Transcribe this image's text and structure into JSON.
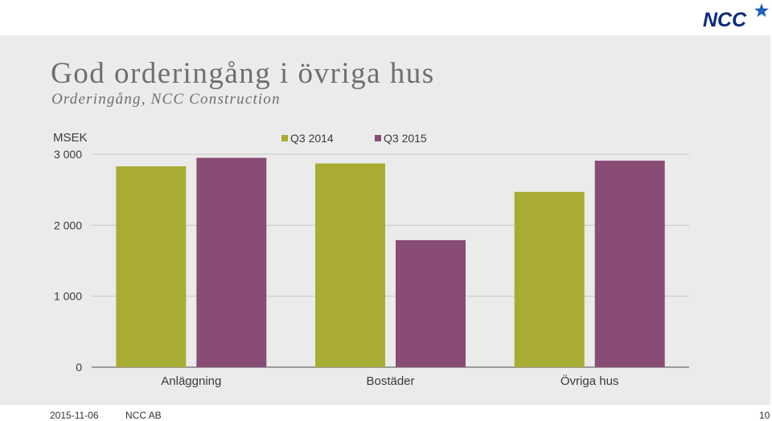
{
  "slide": {
    "title": "God orderingång i övriga hus",
    "subtitle": "Orderingång, NCC Construction",
    "logo_text": "NCC"
  },
  "footer": {
    "date": "2015-11-06",
    "company": "NCC AB",
    "page": "10"
  },
  "colors": {
    "series_2014": "#a9ac33",
    "series_2015": "#894c75",
    "brand_blue": "#0b2b7a",
    "grid": "#c8c8c8"
  },
  "chart_data": {
    "type": "bar",
    "unit_label": "MSEK",
    "categories": [
      "Anläggning",
      "Bostäder",
      "Övriga hus"
    ],
    "series": [
      {
        "name": "Q3 2014",
        "values": [
          2830,
          2870,
          2470
        ]
      },
      {
        "name": "Q3 2015",
        "values": [
          2950,
          1790,
          2910
        ]
      }
    ],
    "yticks": [
      0,
      1000,
      2000,
      3000
    ],
    "ytick_labels": [
      "0",
      "1 000",
      "2 000",
      "3 000"
    ],
    "ylim": [
      0,
      3000
    ],
    "grid": true,
    "legend_position": "top"
  }
}
